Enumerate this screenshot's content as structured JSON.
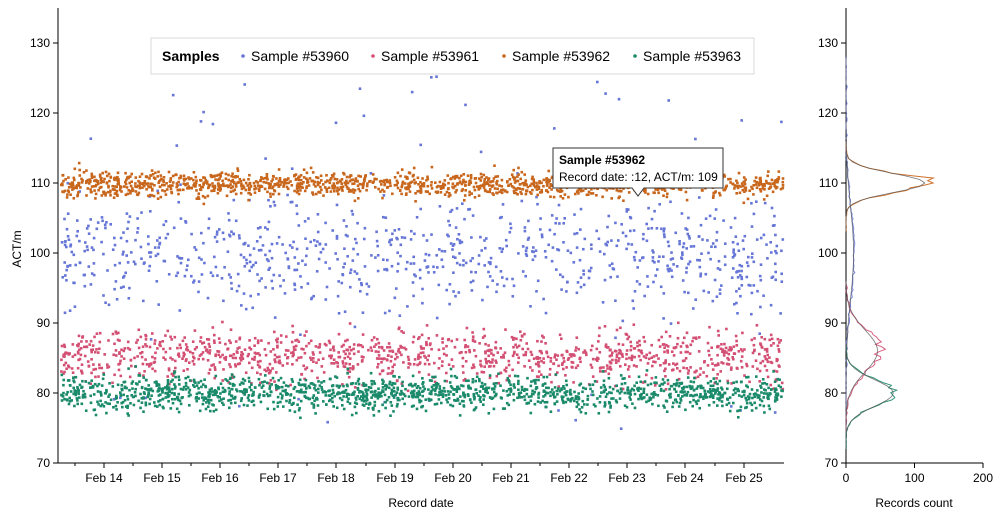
{
  "chart_data": [
    {
      "type": "scatter",
      "xlabel": "Record date",
      "ylabel": "ACT/m",
      "ylim": [
        70,
        135
      ],
      "x_range": [
        "2024-02-13",
        "2024-02-25"
      ],
      "x_ticks": [
        "Feb 14",
        "Feb 15",
        "Feb 16",
        "Feb 17",
        "Feb 18",
        "Feb 19",
        "Feb 20",
        "Feb 21",
        "Feb 22",
        "Feb 23",
        "Feb 24",
        "Feb 25"
      ],
      "y_ticks": [
        70,
        80,
        90,
        100,
        110,
        120,
        130
      ],
      "legend": {
        "title": "Samples",
        "placement": "top"
      },
      "series": [
        {
          "name": "Sample #53960",
          "color": "#6676d6",
          "approx_distribution": {
            "range": [
              75,
              126
            ],
            "center": 99,
            "spread": "wide"
          }
        },
        {
          "name": "Sample #53961",
          "color": "#d34f73",
          "approx_distribution": {
            "range": [
              76,
              94
            ],
            "center": 85
          }
        },
        {
          "name": "Sample #53962",
          "color": "#c8661c",
          "approx_distribution": {
            "range": [
              107,
              114
            ],
            "center": 110
          }
        },
        {
          "name": "Sample #53963",
          "color": "#1a8a6a",
          "approx_distribution": {
            "range": [
              74,
              84
            ],
            "center": 80
          }
        }
      ],
      "tooltip": {
        "title": "Sample #53962",
        "text": "Record date: :12, ACT/m: 109"
      }
    },
    {
      "type": "line",
      "xlabel": "Records count",
      "ylabel": "",
      "xlim": [
        0,
        200
      ],
      "ylim": [
        70,
        135
      ],
      "x_ticks": [
        0,
        100,
        200
      ],
      "y_ticks": [
        70,
        80,
        90,
        100,
        110,
        120,
        130
      ],
      "series": [
        {
          "name": "Sample #53960",
          "color": "#6676d6",
          "peak": {
            "y": 100,
            "count": 12
          }
        },
        {
          "name": "Sample #53961",
          "color": "#d34f73",
          "peak": {
            "y": 86,
            "count": 50
          }
        },
        {
          "name": "Sample #53962",
          "color": "#c8661c",
          "peak": {
            "y": 110,
            "count": 125
          }
        },
        {
          "name": "Sample #53963",
          "color": "#1a8a6a",
          "peak": {
            "y": 80,
            "count": 75
          }
        }
      ]
    }
  ]
}
